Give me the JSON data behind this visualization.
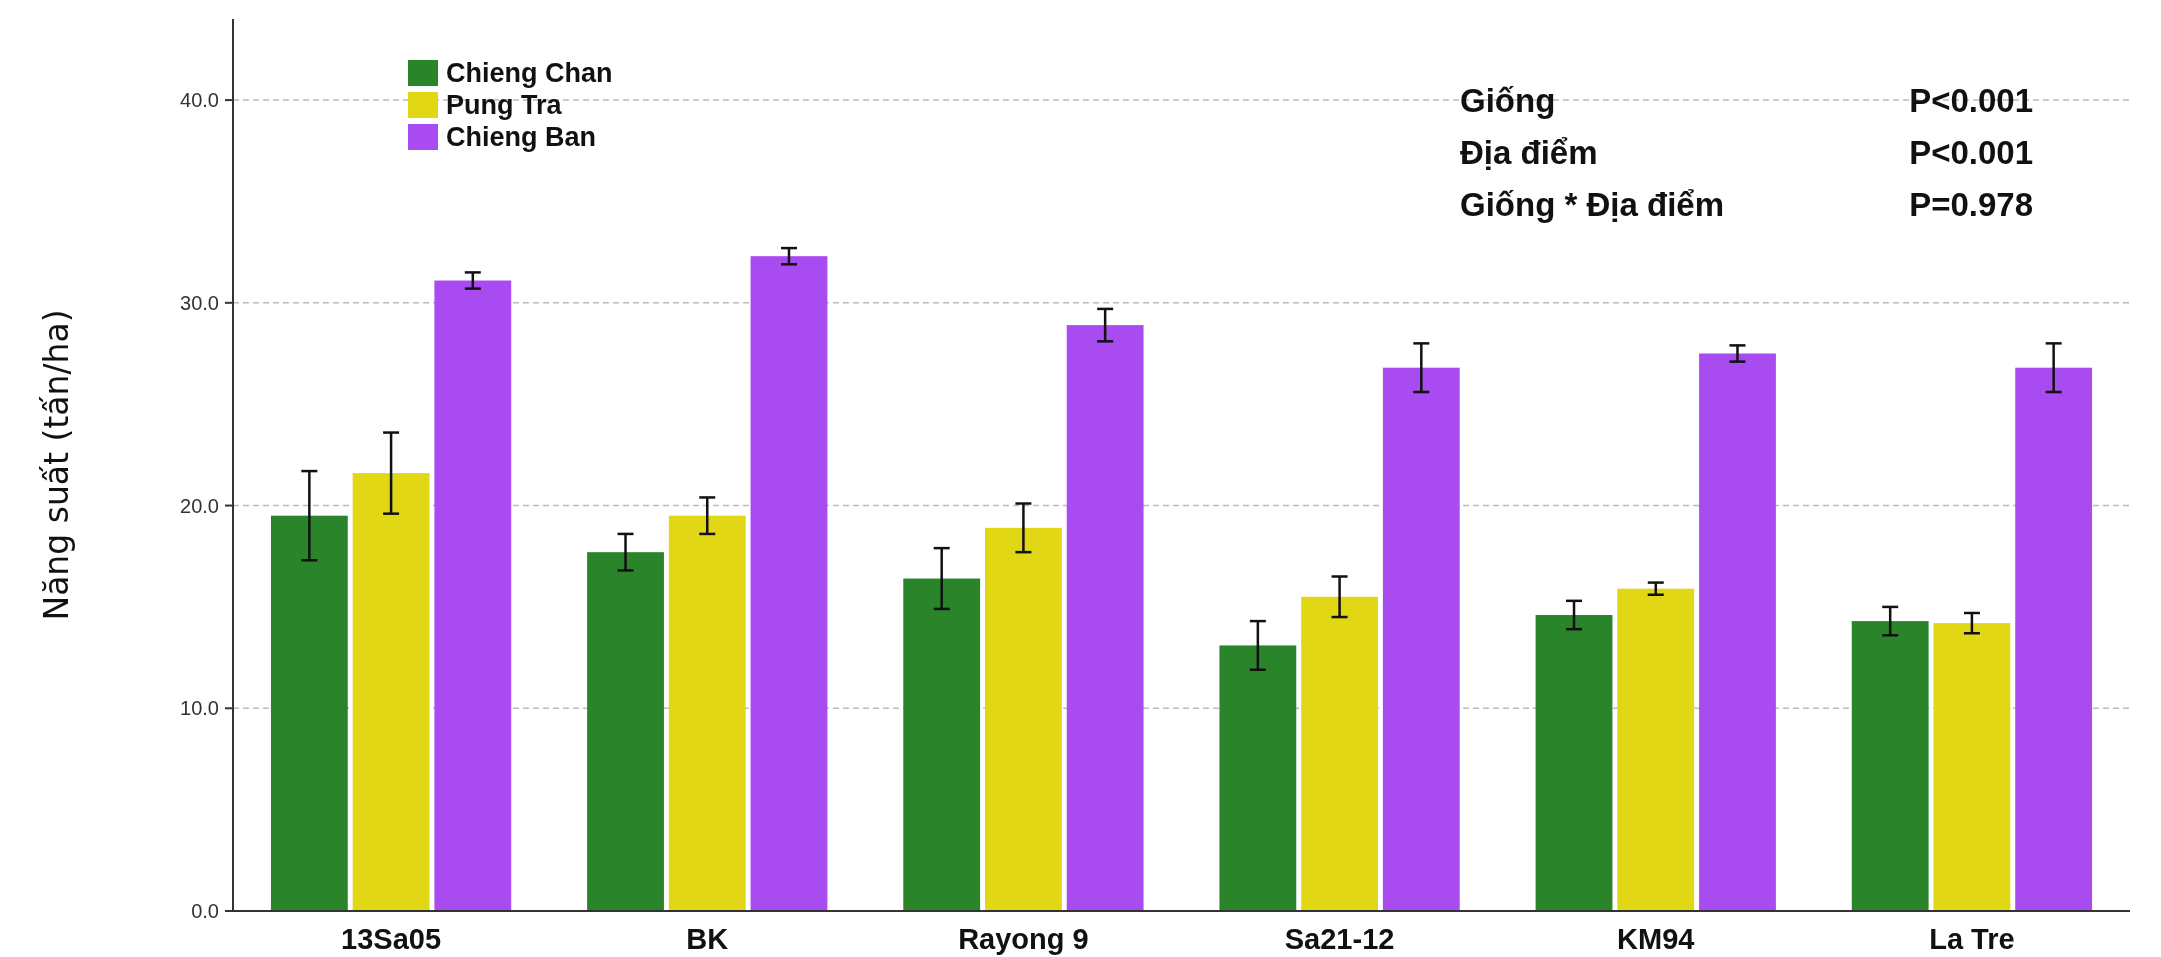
{
  "chart_data": {
    "type": "bar",
    "ylabel": "Năng suất (tấn/ha)",
    "categories": [
      "13Sa05",
      "BK",
      "Rayong 9",
      "Sa21-12",
      "KM94",
      "La Tre"
    ],
    "series": [
      {
        "name": "Chieng Chan",
        "color": "#2a842a",
        "values": [
          19.5,
          17.7,
          16.4,
          13.1,
          14.6,
          14.3
        ],
        "errors": [
          2.2,
          0.9,
          1.5,
          1.2,
          0.7,
          0.7
        ]
      },
      {
        "name": "Pung Tra",
        "color": "#e1d714",
        "values": [
          21.6,
          19.5,
          18.9,
          15.5,
          15.9,
          14.2
        ],
        "errors": [
          2.0,
          0.9,
          1.2,
          1.0,
          0.3,
          0.5
        ]
      },
      {
        "name": "Chieng Ban",
        "color": "#a84bf0",
        "values": [
          31.1,
          32.3,
          28.9,
          26.8,
          27.5,
          26.8
        ],
        "errors": [
          0.4,
          0.4,
          0.8,
          1.2,
          0.4,
          1.2
        ]
      }
    ],
    "ylim": [
      0,
      44
    ],
    "yticks": [
      {
        "value": 0,
        "label": "0.0"
      },
      {
        "value": 10,
        "label": "10.0"
      },
      {
        "value": 20,
        "label": "20.0"
      },
      {
        "value": 30,
        "label": "30.0"
      },
      {
        "value": 40,
        "label": "40.0"
      }
    ],
    "grid": "y",
    "legend": "top left",
    "annotations": [
      "Giống",
      "P<0.001",
      "Địa điểm",
      "P<0.001",
      "Giống * Địa điểm",
      "P=0.978"
    ]
  }
}
